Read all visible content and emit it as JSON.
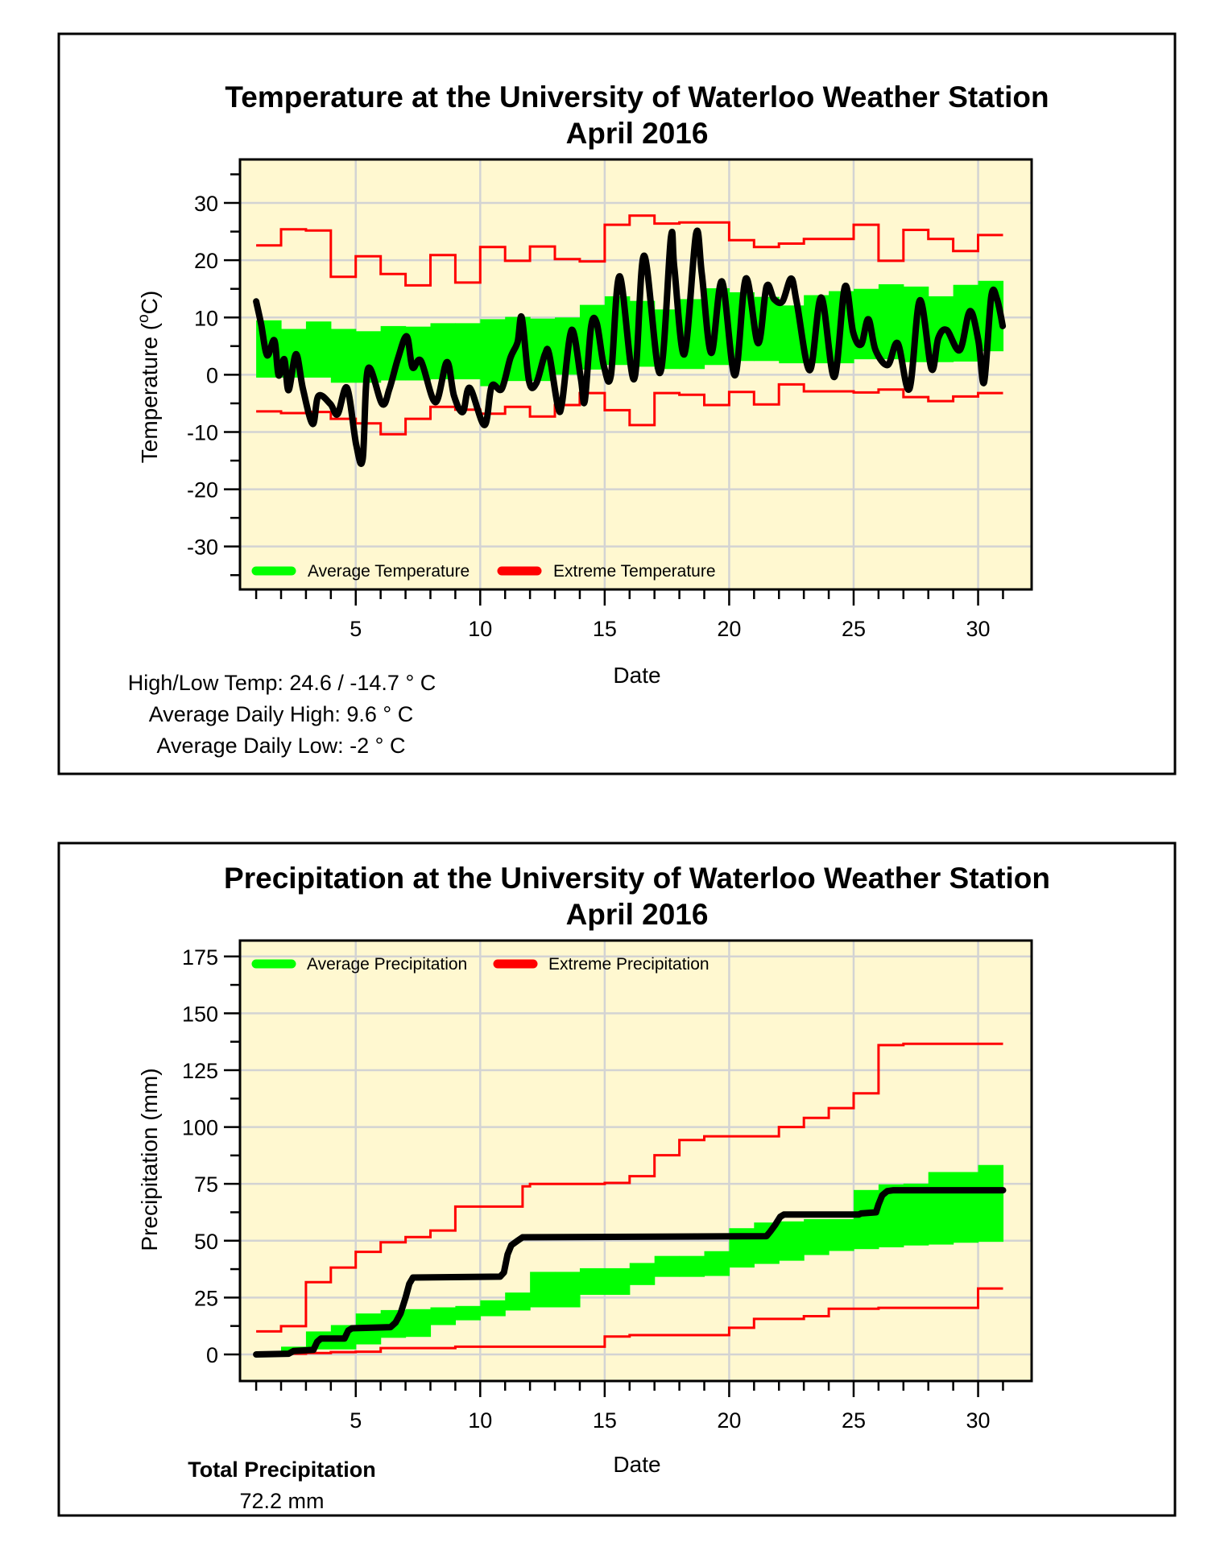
{
  "colors": {
    "plot_background": "#FFF8D0",
    "grid": "#D3D3D3",
    "average": "#00FF00",
    "extreme": "#FF0000",
    "observed": "#000000"
  },
  "chart_data": [
    {
      "type": "line",
      "title": "Temperature at the University of Waterloo Weather Station",
      "subtitle": "April 2016",
      "xlabel": "Date",
      "ylabel_prefix": "Temperature (",
      "ylabel_superscript": "o",
      "ylabel_suffix": "C)",
      "xlim": [
        0.35,
        32.15
      ],
      "ylim": [
        -37.5,
        37.6
      ],
      "x_ticks": [
        5,
        10,
        15,
        20,
        25,
        30
      ],
      "x_tick_labels": [
        "5",
        "10",
        "15",
        "20",
        "25",
        "30"
      ],
      "y_ticks": [
        30,
        20,
        10,
        0,
        -10,
        -20,
        -30
      ],
      "y_tick_labels": [
        "30",
        "20",
        "10",
        "0",
        "-10",
        "-20",
        "-30"
      ],
      "grid": true,
      "legend_placement": "bottom-left",
      "legend": [
        {
          "label": "Average Temperature",
          "color": "#00FF00"
        },
        {
          "label": "Extreme Temperature",
          "color": "#FF0000"
        }
      ],
      "series": [
        {
          "name": "Average Temperature",
          "kind": "band-step",
          "days": [
            1,
            2,
            3,
            4,
            5,
            6,
            7,
            8,
            9,
            10,
            11,
            12,
            13,
            14,
            15,
            16,
            17,
            18,
            19,
            20,
            21,
            22,
            23,
            24,
            25,
            26,
            27,
            28,
            29,
            30
          ],
          "upper": [
            9.5,
            8.0,
            9.3,
            8.0,
            7.6,
            8.5,
            8.4,
            9.0,
            9.0,
            9.7,
            10.1,
            9.8,
            10.0,
            12.2,
            13.7,
            12.9,
            11.4,
            13.2,
            15.1,
            14.4,
            13.6,
            12.1,
            13.9,
            14.6,
            15.0,
            15.8,
            15.4,
            13.7,
            15.7,
            16.4
          ],
          "lower": [
            -0.5,
            -0.5,
            -0.5,
            -1.4,
            -1.4,
            -1.0,
            -1.0,
            -0.8,
            -0.8,
            -2.0,
            -1.1,
            -1.1,
            0.0,
            0.9,
            1.7,
            1.4,
            1.0,
            1.0,
            1.7,
            2.4,
            2.4,
            2.0,
            2.0,
            2.0,
            2.7,
            2.7,
            2.2,
            2.2,
            2.3,
            4.1
          ]
        },
        {
          "name": "Extreme Temperature High",
          "kind": "step",
          "days": [
            1,
            2,
            3,
            4,
            5,
            6,
            7,
            8,
            9,
            10,
            11,
            12,
            13,
            14,
            15,
            16,
            17,
            18,
            19,
            20,
            21,
            22,
            23,
            24,
            25,
            26,
            27,
            28,
            29,
            30
          ],
          "values": [
            22.6,
            25.4,
            25.2,
            17.1,
            20.7,
            17.6,
            15.6,
            20.9,
            16.1,
            22.3,
            19.9,
            22.4,
            20.2,
            19.8,
            26.2,
            27.8,
            26.4,
            26.6,
            26.6,
            23.5,
            22.3,
            22.9,
            23.7,
            23.7,
            26.2,
            19.9,
            25.3,
            23.7,
            21.6,
            24.4
          ]
        },
        {
          "name": "Extreme Temperature Low",
          "kind": "step",
          "days": [
            1,
            2,
            3,
            4,
            5,
            6,
            7,
            8,
            9,
            10,
            11,
            12,
            13,
            14,
            15,
            16,
            17,
            18,
            19,
            20,
            21,
            22,
            23,
            24,
            25,
            26,
            27,
            28,
            29,
            30
          ],
          "values": [
            -6.4,
            -6.7,
            -6.5,
            -7.7,
            -8.5,
            -10.4,
            -7.7,
            -5.6,
            -6.1,
            -6.8,
            -5.6,
            -7.3,
            -5.3,
            -3.2,
            -6.2,
            -8.8,
            -3.2,
            -3.5,
            -5.3,
            -3.0,
            -5.2,
            -1.7,
            -2.9,
            -2.9,
            -3.1,
            -2.6,
            -3.9,
            -4.6,
            -3.8,
            -3.2
          ]
        },
        {
          "name": "Observed Temperature",
          "kind": "line",
          "x": [
            1.0,
            1.2,
            1.44,
            1.73,
            1.9,
            2.13,
            2.3,
            2.6,
            2.88,
            3.27,
            3.5,
            3.98,
            4.27,
            4.65,
            5.02,
            5.28,
            5.49,
            6.06,
            6.35,
            6.7,
            7.05,
            7.28,
            7.62,
            8.2,
            8.66,
            8.95,
            9.3,
            9.58,
            10.17,
            10.46,
            10.86,
            11.21,
            11.5,
            11.67,
            11.96,
            12.25,
            12.6,
            12.77,
            13.12,
            13.29,
            13.67,
            14.04,
            14.2,
            14.45,
            14.68,
            14.97,
            15.25,
            15.6,
            16.18,
            16.58,
            17.22,
            17.66,
            17.8,
            18.2,
            18.67,
            18.9,
            19.28,
            19.71,
            20.23,
            20.67,
            21.16,
            21.5,
            21.8,
            22.14,
            22.49,
            22.72,
            23.24,
            23.7,
            24.22,
            24.65,
            24.98,
            25.3,
            25.59,
            25.88,
            26.37,
            26.77,
            27.24,
            27.66,
            28.13,
            28.4,
            28.74,
            29.26,
            29.67,
            30.01,
            30.24,
            30.53,
            30.76,
            30.99
          ],
          "y": [
            12.8,
            8.8,
            3.4,
            6.0,
            -0.1,
            2.7,
            -2.7,
            3.6,
            -2.5,
            -8.6,
            -3.7,
            -5.1,
            -6.9,
            -2.3,
            -12.3,
            -14.7,
            1.0,
            -5.1,
            -2.5,
            2.9,
            6.7,
            1.3,
            2.4,
            -4.8,
            2.2,
            -3.7,
            -6.5,
            -2.3,
            -8.8,
            -2.0,
            -2.5,
            2.9,
            5.7,
            10.0,
            -1.1,
            -1.5,
            3.6,
            3.6,
            -5.5,
            -4.8,
            7.8,
            -0.6,
            -4.6,
            8.3,
            9.0,
            1.5,
            -0.1,
            17.2,
            -0.8,
            20.8,
            0.3,
            24.0,
            18.6,
            3.6,
            24.6,
            17.7,
            3.8,
            16.3,
            -0.1,
            16.8,
            5.5,
            15.4,
            13.2,
            12.8,
            16.8,
            12.5,
            0.8,
            13.5,
            -0.4,
            15.4,
            7.4,
            5.3,
            9.7,
            4.3,
            1.7,
            5.5,
            -2.5,
            13.0,
            1.0,
            6.4,
            7.8,
            4.3,
            11.1,
            6.0,
            -1.3,
            13.7,
            13.2,
            8.5
          ]
        }
      ]
    },
    {
      "type": "line",
      "title": "Precipitation at the University of Waterloo Weather Station",
      "subtitle": "April 2016",
      "xlabel": "Date",
      "ylabel": "Precipitation (mm)",
      "xlim": [
        0.35,
        32.15
      ],
      "ylim": [
        -11.7,
        182
      ],
      "x_ticks": [
        5,
        10,
        15,
        20,
        25,
        30
      ],
      "x_tick_labels": [
        "5",
        "10",
        "15",
        "20",
        "25",
        "30"
      ],
      "y_ticks": [
        175,
        150,
        125,
        100,
        75,
        50,
        25,
        0
      ],
      "y_tick_labels": [
        "175",
        "150",
        "125",
        "100",
        "75",
        "50",
        "25",
        "0"
      ],
      "grid": true,
      "legend_placement": "top-left",
      "legend": [
        {
          "label": "Average Precipitation",
          "color": "#00FF00"
        },
        {
          "label": "Extreme Precipitation",
          "color": "#FF0000"
        }
      ],
      "series": [
        {
          "name": "Average Precipitation",
          "kind": "band-step",
          "days": [
            1,
            2,
            3,
            4,
            5,
            6,
            7,
            8,
            9,
            10,
            11,
            12,
            13,
            14,
            15,
            16,
            17,
            18,
            19,
            20,
            21,
            22,
            23,
            24,
            25,
            26,
            27,
            28,
            29,
            30
          ],
          "upper": [
            1.0,
            3.4,
            10.1,
            12.9,
            18.0,
            19.5,
            19.9,
            20.7,
            21.3,
            23.8,
            27.2,
            36.3,
            36.3,
            37.9,
            37.9,
            40.2,
            43.3,
            43.3,
            45.4,
            55.5,
            58.0,
            58.5,
            59.5,
            59.5,
            72.3,
            74.8,
            75.1,
            80.2,
            80.2,
            83.3
          ],
          "lower": [
            0.0,
            0.0,
            2.2,
            2.2,
            4.4,
            7.3,
            7.7,
            12.9,
            15.0,
            16.8,
            19.3,
            20.7,
            20.7,
            26.2,
            26.2,
            30.5,
            34.1,
            34.1,
            34.5,
            38.2,
            39.8,
            41.2,
            43.7,
            45.5,
            46.3,
            47.1,
            47.9,
            48.3,
            49.1,
            49.5
          ]
        },
        {
          "name": "Extreme Precipitation High",
          "kind": "step",
          "days": [
            1,
            2,
            3,
            4,
            5,
            6,
            7,
            8,
            9,
            10,
            11,
            11.7,
            12,
            13,
            14,
            15,
            16,
            17,
            18,
            19,
            20,
            21,
            22,
            23,
            24,
            25,
            26,
            27,
            28,
            29,
            30
          ],
          "values": [
            10.1,
            12.4,
            31.8,
            38.2,
            45.1,
            49.3,
            51.6,
            54.5,
            65.0,
            65.0,
            65.0,
            73.9,
            75.0,
            75.0,
            75.0,
            75.4,
            78.4,
            87.6,
            94.3,
            95.9,
            95.9,
            95.9,
            100.0,
            104.0,
            108.3,
            114.8,
            136.0,
            136.6,
            136.6,
            136.6,
            136.6
          ]
        },
        {
          "name": "Extreme Precipitation Low",
          "kind": "step",
          "days": [
            1,
            2,
            3,
            4,
            5,
            6,
            7,
            8,
            9,
            10,
            11,
            12,
            13,
            14,
            15,
            16,
            17,
            18,
            19,
            20,
            21,
            22,
            23,
            24,
            25,
            26,
            27,
            28,
            29,
            30
          ],
          "values": [
            0.0,
            0.3,
            0.6,
            1.0,
            1.2,
            2.8,
            2.8,
            2.8,
            3.4,
            3.4,
            3.4,
            3.4,
            3.4,
            3.4,
            7.9,
            8.5,
            8.5,
            8.5,
            8.5,
            11.7,
            15.6,
            15.6,
            16.8,
            20.1,
            20.1,
            20.5,
            20.5,
            20.5,
            20.5,
            29.0
          ]
        },
        {
          "name": "Observed Precipitation",
          "kind": "line",
          "x": [
            1.0,
            2.3,
            2.5,
            3.3,
            3.45,
            3.6,
            4.55,
            4.7,
            4.85,
            6.4,
            6.6,
            6.8,
            7.0,
            7.15,
            7.3,
            10.8,
            10.95,
            11.1,
            11.25,
            11.5,
            11.7,
            21.5,
            21.65,
            21.85,
            22.05,
            22.2,
            25.2,
            25.3,
            25.9,
            26.0,
            26.15,
            26.35,
            26.6,
            31.0
          ],
          "y": [
            0.0,
            0.3,
            1.5,
            2.0,
            5.5,
            7.0,
            7.0,
            10.5,
            11.5,
            12.0,
            14.0,
            18.0,
            25.0,
            31.0,
            33.8,
            34.2,
            36.0,
            44.0,
            48.0,
            50.0,
            51.5,
            52.0,
            54.0,
            57.0,
            60.5,
            61.5,
            61.5,
            62.0,
            62.5,
            66.0,
            70.0,
            71.8,
            72.2,
            72.2
          ]
        }
      ]
    }
  ],
  "temperature_stats": {
    "high_low": "High/Low Temp:  24.6 / -14.7 ° C",
    "avg_high": "Average Daily High:  9.6 ° C",
    "avg_low": "Average Daily Low:  -2 ° C"
  },
  "precipitation_stats": {
    "label": "Total Precipitation",
    "value": "72.2 mm"
  }
}
